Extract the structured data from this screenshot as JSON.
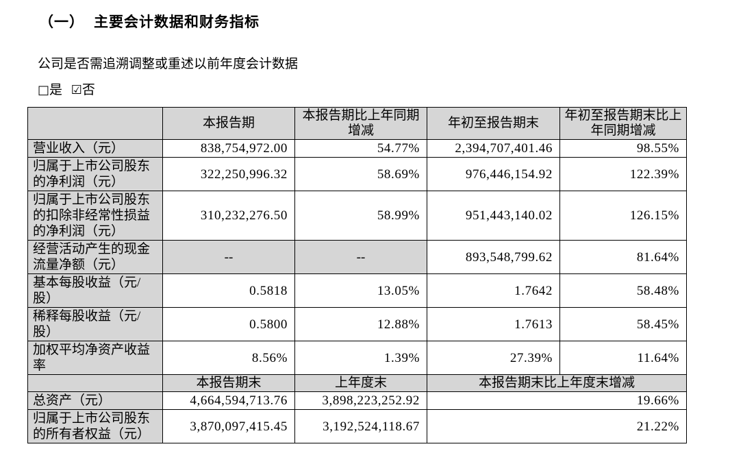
{
  "page": {
    "section_prefix": "（一）",
    "section_title": "主要会计数据和财务指标",
    "question": "公司是否需追溯调整或重述以前年度会计数据",
    "checkbox_yes_symbol": "□",
    "checkbox_yes_label": "是",
    "checkbox_no_symbol": "☑",
    "checkbox_no_label": "否"
  },
  "table": {
    "header_row1": {
      "col1": "",
      "col2": "本报告期",
      "col3": "本报告期比上年同期增减",
      "col4": "年初至报告期末",
      "col5": "年初至报告期末比上年同期增减"
    },
    "rows": [
      {
        "label": "营业收入（元）",
        "current_period": "838,754,972.00",
        "yoy_change": "54.77%",
        "ytd": "2,394,707,401.46",
        "ytd_yoy_change": "98.55%"
      },
      {
        "label": "归属于上市公司股东的净利润（元）",
        "current_period": "322,250,996.32",
        "yoy_change": "58.69%",
        "ytd": "976,446,154.92",
        "ytd_yoy_change": "122.39%"
      },
      {
        "label": "归属于上市公司股东的扣除非经常性损益的净利润（元）",
        "current_period": "310,232,276.50",
        "yoy_change": "58.99%",
        "ytd": "951,443,140.02",
        "ytd_yoy_change": "126.15%"
      },
      {
        "label": "经营活动产生的现金流量净额（元）",
        "current_period": "--",
        "yoy_change": "--",
        "ytd": "893,548,799.62",
        "ytd_yoy_change": "81.64%"
      },
      {
        "label": "基本每股收益（元/股）",
        "current_period": "0.5818",
        "yoy_change": "13.05%",
        "ytd": "1.7642",
        "ytd_yoy_change": "58.48%"
      },
      {
        "label": "稀释每股收益（元/股）",
        "current_period": "0.5800",
        "yoy_change": "12.88%",
        "ytd": "1.7613",
        "ytd_yoy_change": "58.45%"
      },
      {
        "label": "加权平均净资产收益率",
        "current_period": "8.56%",
        "yoy_change": "1.39%",
        "ytd": "27.39%",
        "ytd_yoy_change": "11.64%"
      }
    ],
    "header_row2": {
      "col1": "",
      "col2": "本报告期末",
      "col3": "上年度末",
      "col45": "本报告期末比上年度末增减"
    },
    "rows2": [
      {
        "label": "总资产（元）",
        "period_end": "4,664,594,713.76",
        "prev_year_end": "3,898,223,252.92",
        "change": "19.66%"
      },
      {
        "label": "归属于上市公司股东的所有者权益（元）",
        "period_end": "3,870,097,415.45",
        "prev_year_end": "3,192,524,118.67",
        "change": "21.22%"
      }
    ]
  }
}
